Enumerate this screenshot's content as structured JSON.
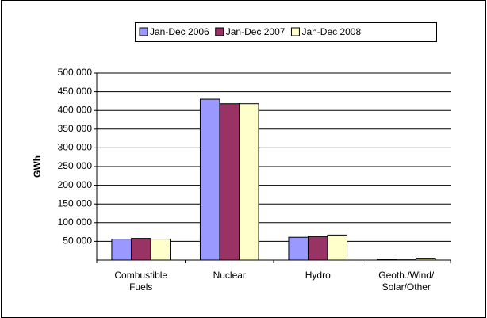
{
  "chart_data": {
    "type": "bar",
    "y_label": "GWh",
    "categories": [
      "Combustible\nFuels",
      "Nuclear",
      "Hydro",
      "Geoth./Wind/\nSolar/Other"
    ],
    "series": [
      {
        "name": "Jan-Dec 2006",
        "color": "#9999ff",
        "values": [
          56000,
          430000,
          61000,
          2000
        ]
      },
      {
        "name": "Jan-Dec 2007",
        "color": "#993366",
        "values": [
          58000,
          418000,
          63000,
          3000
        ]
      },
      {
        "name": "Jan-Dec 2008",
        "color": "#ffffcc",
        "values": [
          56000,
          418000,
          67000,
          5000
        ]
      }
    ],
    "ylim": [
      0,
      500000
    ],
    "yticks": [
      {
        "value": 50000,
        "label": "50 000"
      },
      {
        "value": 100000,
        "label": "100 000"
      },
      {
        "value": 150000,
        "label": "150 000"
      },
      {
        "value": 200000,
        "label": "200 000"
      },
      {
        "value": 250000,
        "label": "250 000"
      },
      {
        "value": 300000,
        "label": "300 000"
      },
      {
        "value": 350000,
        "label": "350 000"
      },
      {
        "value": 400000,
        "label": "400 000"
      },
      {
        "value": 450000,
        "label": "450 000"
      },
      {
        "value": 500000,
        "label": "500 000"
      }
    ],
    "grid": true,
    "legend": "top"
  }
}
